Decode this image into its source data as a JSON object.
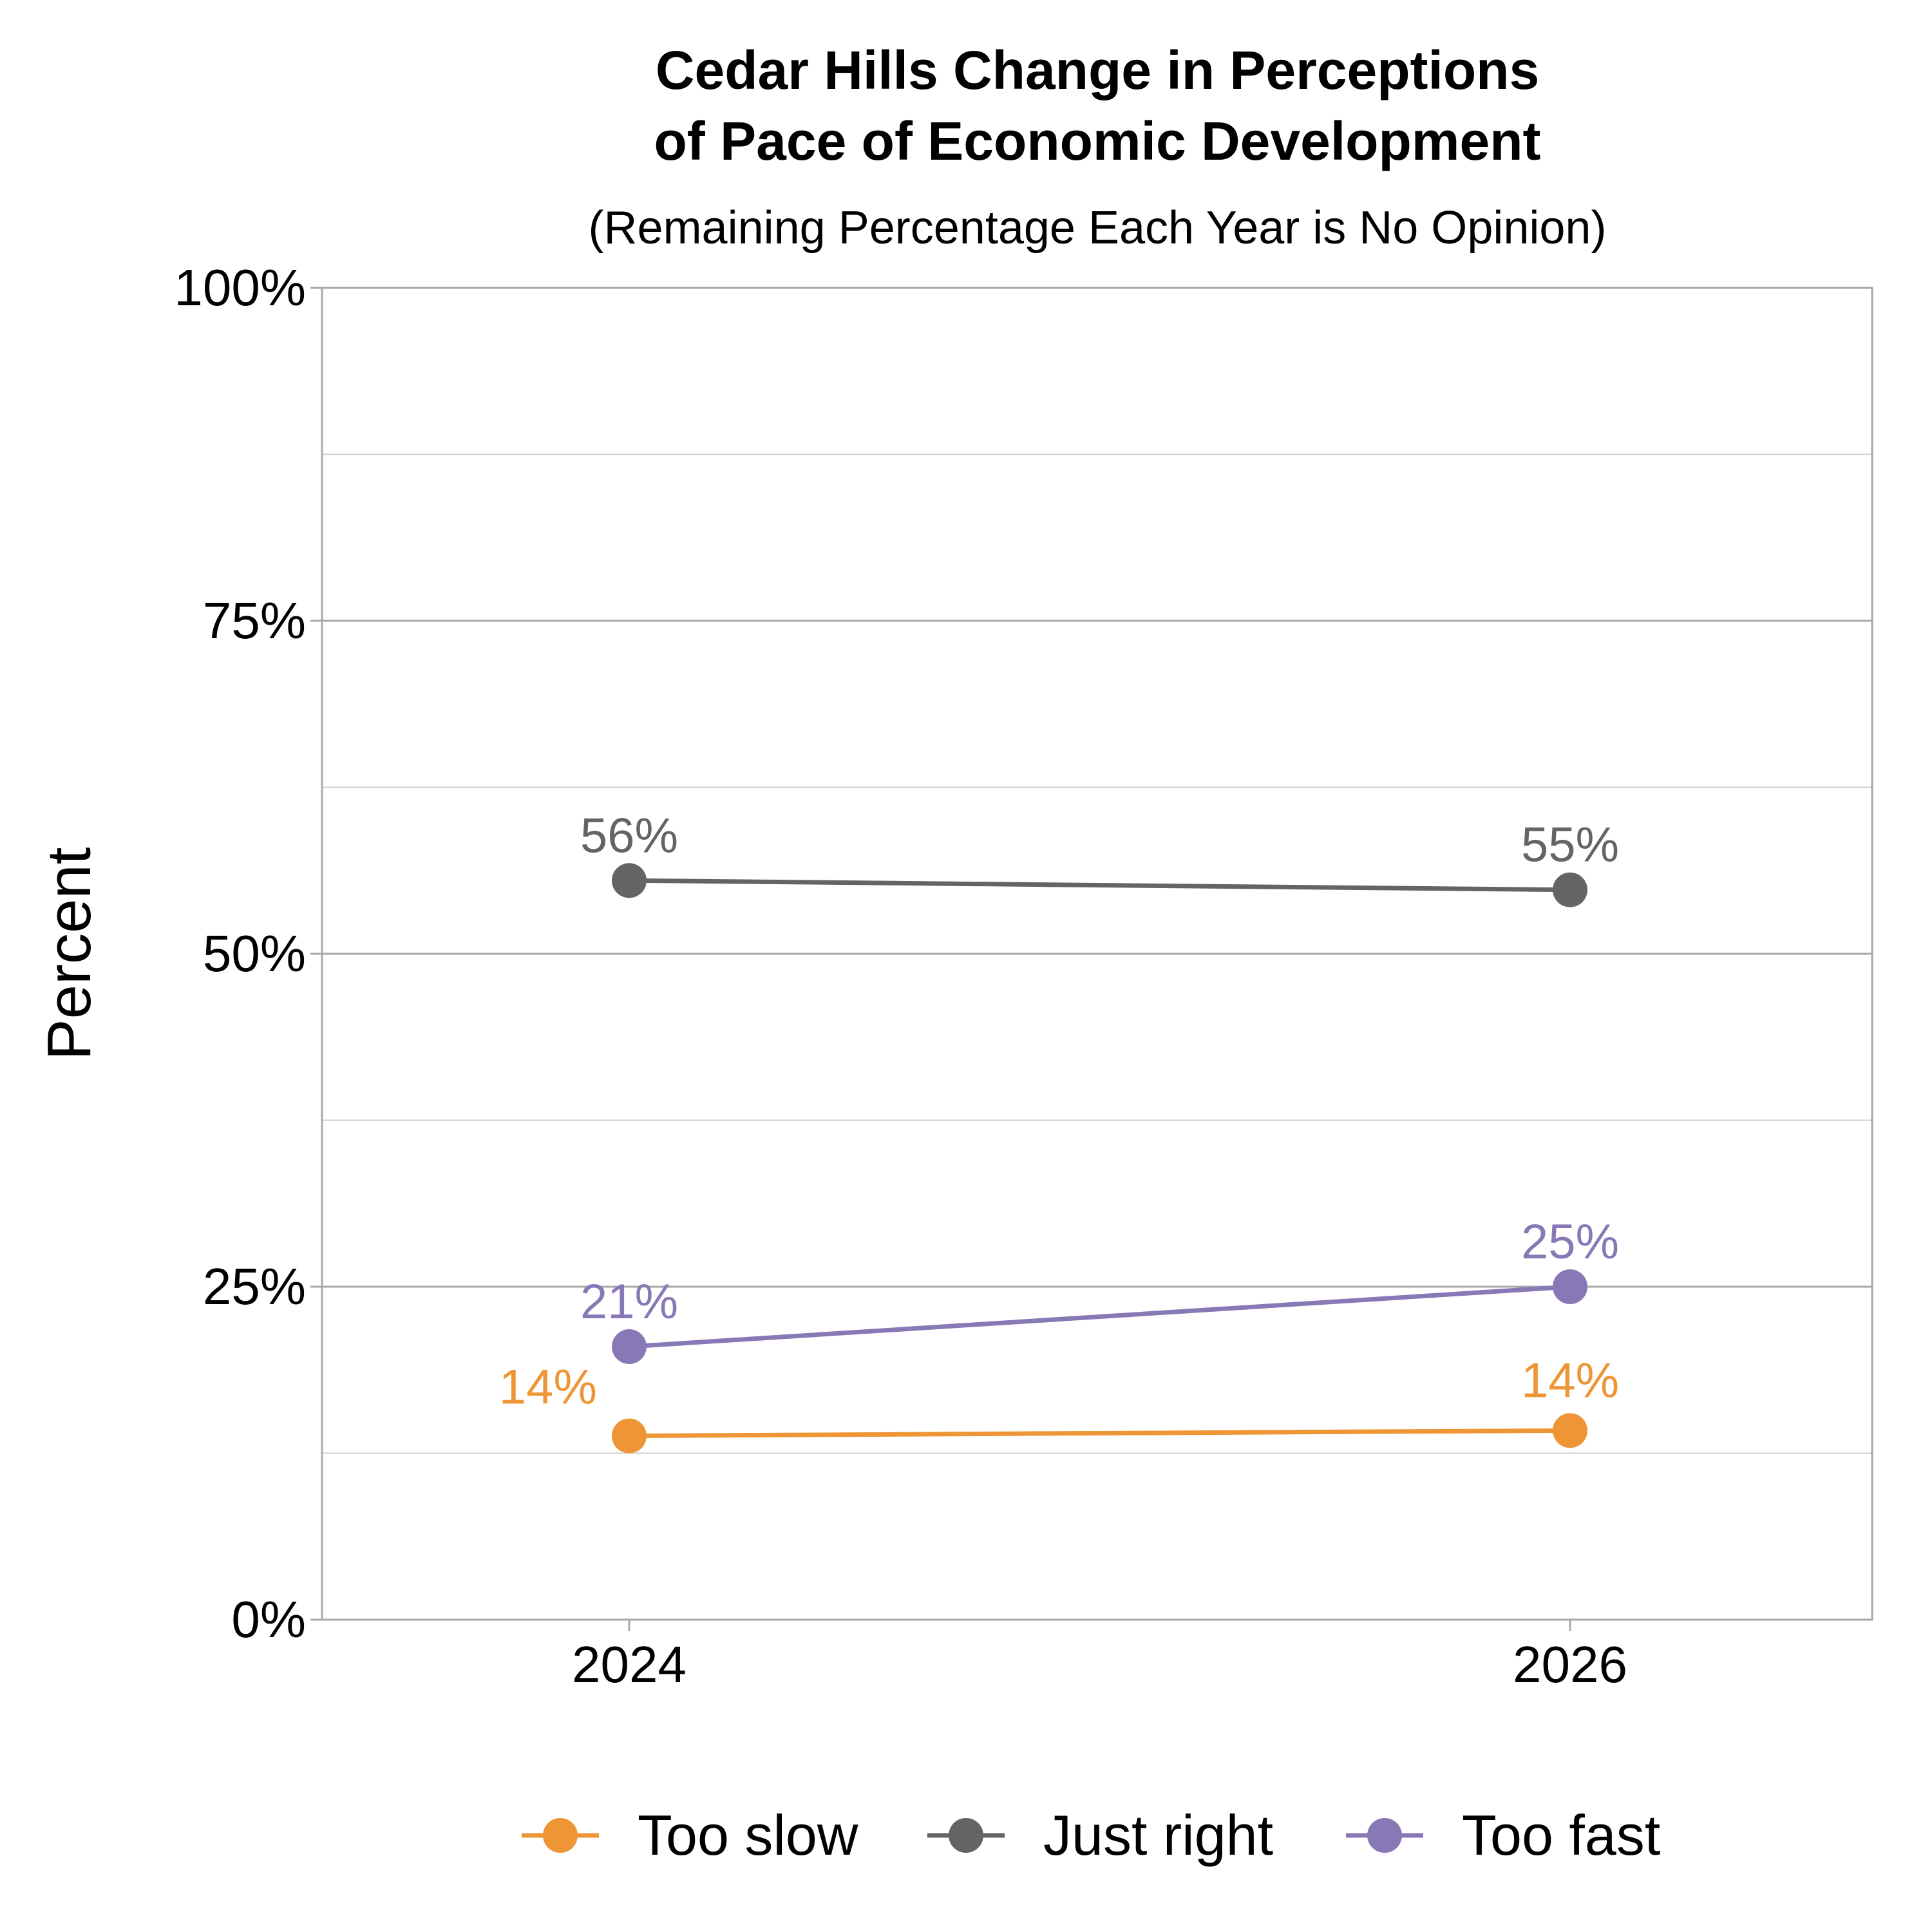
{
  "chart_data": {
    "type": "line",
    "title_line1": "Cedar Hills Change in Perceptions",
    "title_line2": "of Pace of Economic Development",
    "subtitle": "(Remaining Percentage Each Year is No Opinion)",
    "ylabel": "Percent",
    "xlabel": "",
    "categories": [
      "2024",
      "2026"
    ],
    "ylim": [
      0,
      100
    ],
    "yticks": [
      0,
      25,
      50,
      75,
      100
    ],
    "ytick_labels": [
      "0%",
      "25%",
      "50%",
      "75%",
      "100%"
    ],
    "minor_grid": [
      12.5,
      37.5,
      62.5,
      87.5
    ],
    "grid": true,
    "legend_position": "bottom",
    "series": [
      {
        "name": "Too slow",
        "color": "#EE9535",
        "values": [
          13.8,
          14.2
        ],
        "labels": [
          "14%",
          "14%"
        ]
      },
      {
        "name": "Just right",
        "color": "#646464",
        "values": [
          55.5,
          54.8
        ],
        "labels": [
          "56%",
          "55%"
        ]
      },
      {
        "name": "Too fast",
        "color": "#8878B6",
        "values": [
          20.5,
          25.0
        ],
        "labels": [
          "21%",
          "25%"
        ]
      }
    ]
  }
}
